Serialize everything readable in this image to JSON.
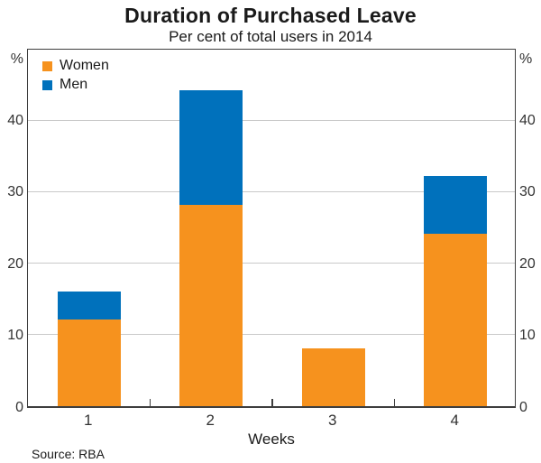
{
  "title": "Duration of Purchased Leave",
  "subtitle": "Per cent of total users in 2014",
  "source_note": "Source: RBA",
  "axis": {
    "unit_label": "%",
    "xlabel": "Weeks",
    "yticks": [
      0,
      10,
      20,
      30,
      40
    ],
    "ymax": 50
  },
  "legend": [
    {
      "label": "Women",
      "color": "#F6921E"
    },
    {
      "label": "Men",
      "color": "#0071BC"
    }
  ],
  "colors": {
    "women": "#F6921E",
    "men": "#0071BC",
    "gridline": "#c9c9c9",
    "frame": "#3e3e3e"
  },
  "chart_data": {
    "type": "bar",
    "stacked": true,
    "categories": [
      "1",
      "2",
      "3",
      "4"
    ],
    "series": [
      {
        "name": "Women",
        "color": "#F6921E",
        "values": [
          12,
          28,
          8,
          24
        ]
      },
      {
        "name": "Men",
        "color": "#0071BC",
        "values": [
          4,
          16,
          0,
          8
        ]
      }
    ],
    "totals": [
      16,
      44,
      8,
      32
    ],
    "title": "Duration of Purchased Leave",
    "subtitle": "Per cent of total users in 2014",
    "xlabel": "Weeks",
    "ylabel": "%",
    "ylim": [
      0,
      50
    ],
    "ytick_interval": 10,
    "grid": true,
    "legend_position": "top-left",
    "source": "Source: RBA"
  }
}
